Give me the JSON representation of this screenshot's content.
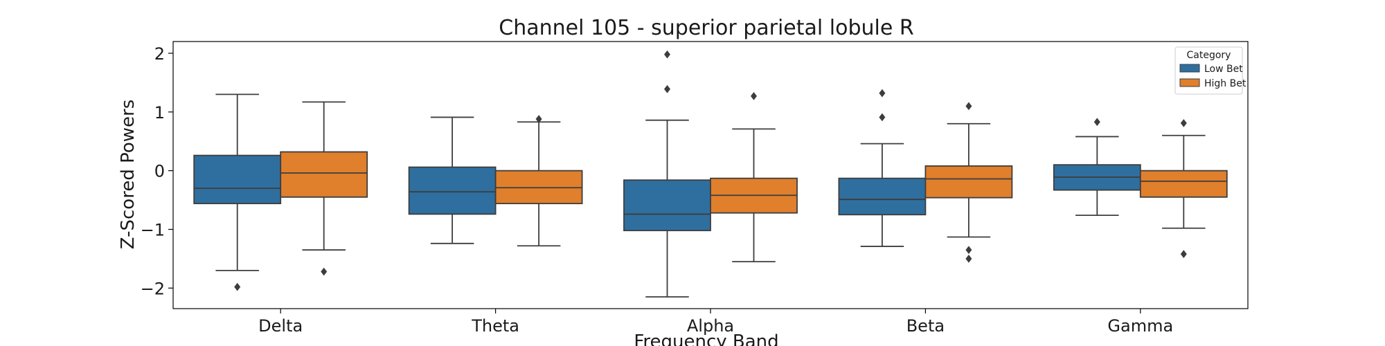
{
  "chart_data": {
    "type": "box",
    "title": "Channel 105 - superior parietal lobule R",
    "xlabel": "Frequency Band",
    "ylabel": "Z-Scored Powers",
    "ylim": [
      -2.35,
      2.2
    ],
    "yticks": [
      {
        "value": 2,
        "label": "2"
      },
      {
        "value": 1,
        "label": "1"
      },
      {
        "value": 0,
        "label": "0"
      },
      {
        "value": -1,
        "label": "−1"
      },
      {
        "value": -2,
        "label": "−2"
      }
    ],
    "categories": [
      "Delta",
      "Theta",
      "Alpha",
      "Beta",
      "Gamma"
    ],
    "legend": {
      "title": "Category",
      "placement": "top-right"
    },
    "series": [
      {
        "name": "Low Bet",
        "color": "#2f6f9f",
        "boxes": [
          {
            "whisker_low": -1.7,
            "q1": -0.56,
            "median": -0.3,
            "q3": 0.26,
            "whisker_high": 1.3,
            "outliers": [
              -1.98
            ]
          },
          {
            "whisker_low": -1.24,
            "q1": -0.74,
            "median": -0.36,
            "q3": 0.06,
            "whisker_high": 0.91,
            "outliers": []
          },
          {
            "whisker_low": -2.15,
            "q1": -1.02,
            "median": -0.74,
            "q3": -0.16,
            "whisker_high": 0.86,
            "outliers": [
              1.39,
              1.98
            ]
          },
          {
            "whisker_low": -1.29,
            "q1": -0.75,
            "median": -0.49,
            "q3": -0.13,
            "whisker_high": 0.46,
            "outliers": [
              0.91,
              1.32
            ]
          },
          {
            "whisker_low": -0.76,
            "q1": -0.33,
            "median": -0.11,
            "q3": 0.1,
            "whisker_high": 0.58,
            "outliers": [
              0.83
            ]
          }
        ]
      },
      {
        "name": "High Bet",
        "color": "#e07f2c",
        "boxes": [
          {
            "whisker_low": -1.35,
            "q1": -0.45,
            "median": -0.04,
            "q3": 0.32,
            "whisker_high": 1.17,
            "outliers": [
              -1.72
            ]
          },
          {
            "whisker_low": -1.28,
            "q1": -0.56,
            "median": -0.29,
            "q3": 0.0,
            "whisker_high": 0.83,
            "outliers": [
              0.88
            ]
          },
          {
            "whisker_low": -1.55,
            "q1": -0.72,
            "median": -0.42,
            "q3": -0.13,
            "whisker_high": 0.71,
            "outliers": [
              1.27
            ]
          },
          {
            "whisker_low": -1.13,
            "q1": -0.46,
            "median": -0.14,
            "q3": 0.08,
            "whisker_high": 0.8,
            "outliers": [
              1.1,
              -1.35,
              -1.5
            ]
          },
          {
            "whisker_low": -0.98,
            "q1": -0.45,
            "median": -0.18,
            "q3": 0.0,
            "whisker_high": 0.6,
            "outliers": [
              0.81,
              -1.42
            ]
          }
        ]
      }
    ]
  }
}
